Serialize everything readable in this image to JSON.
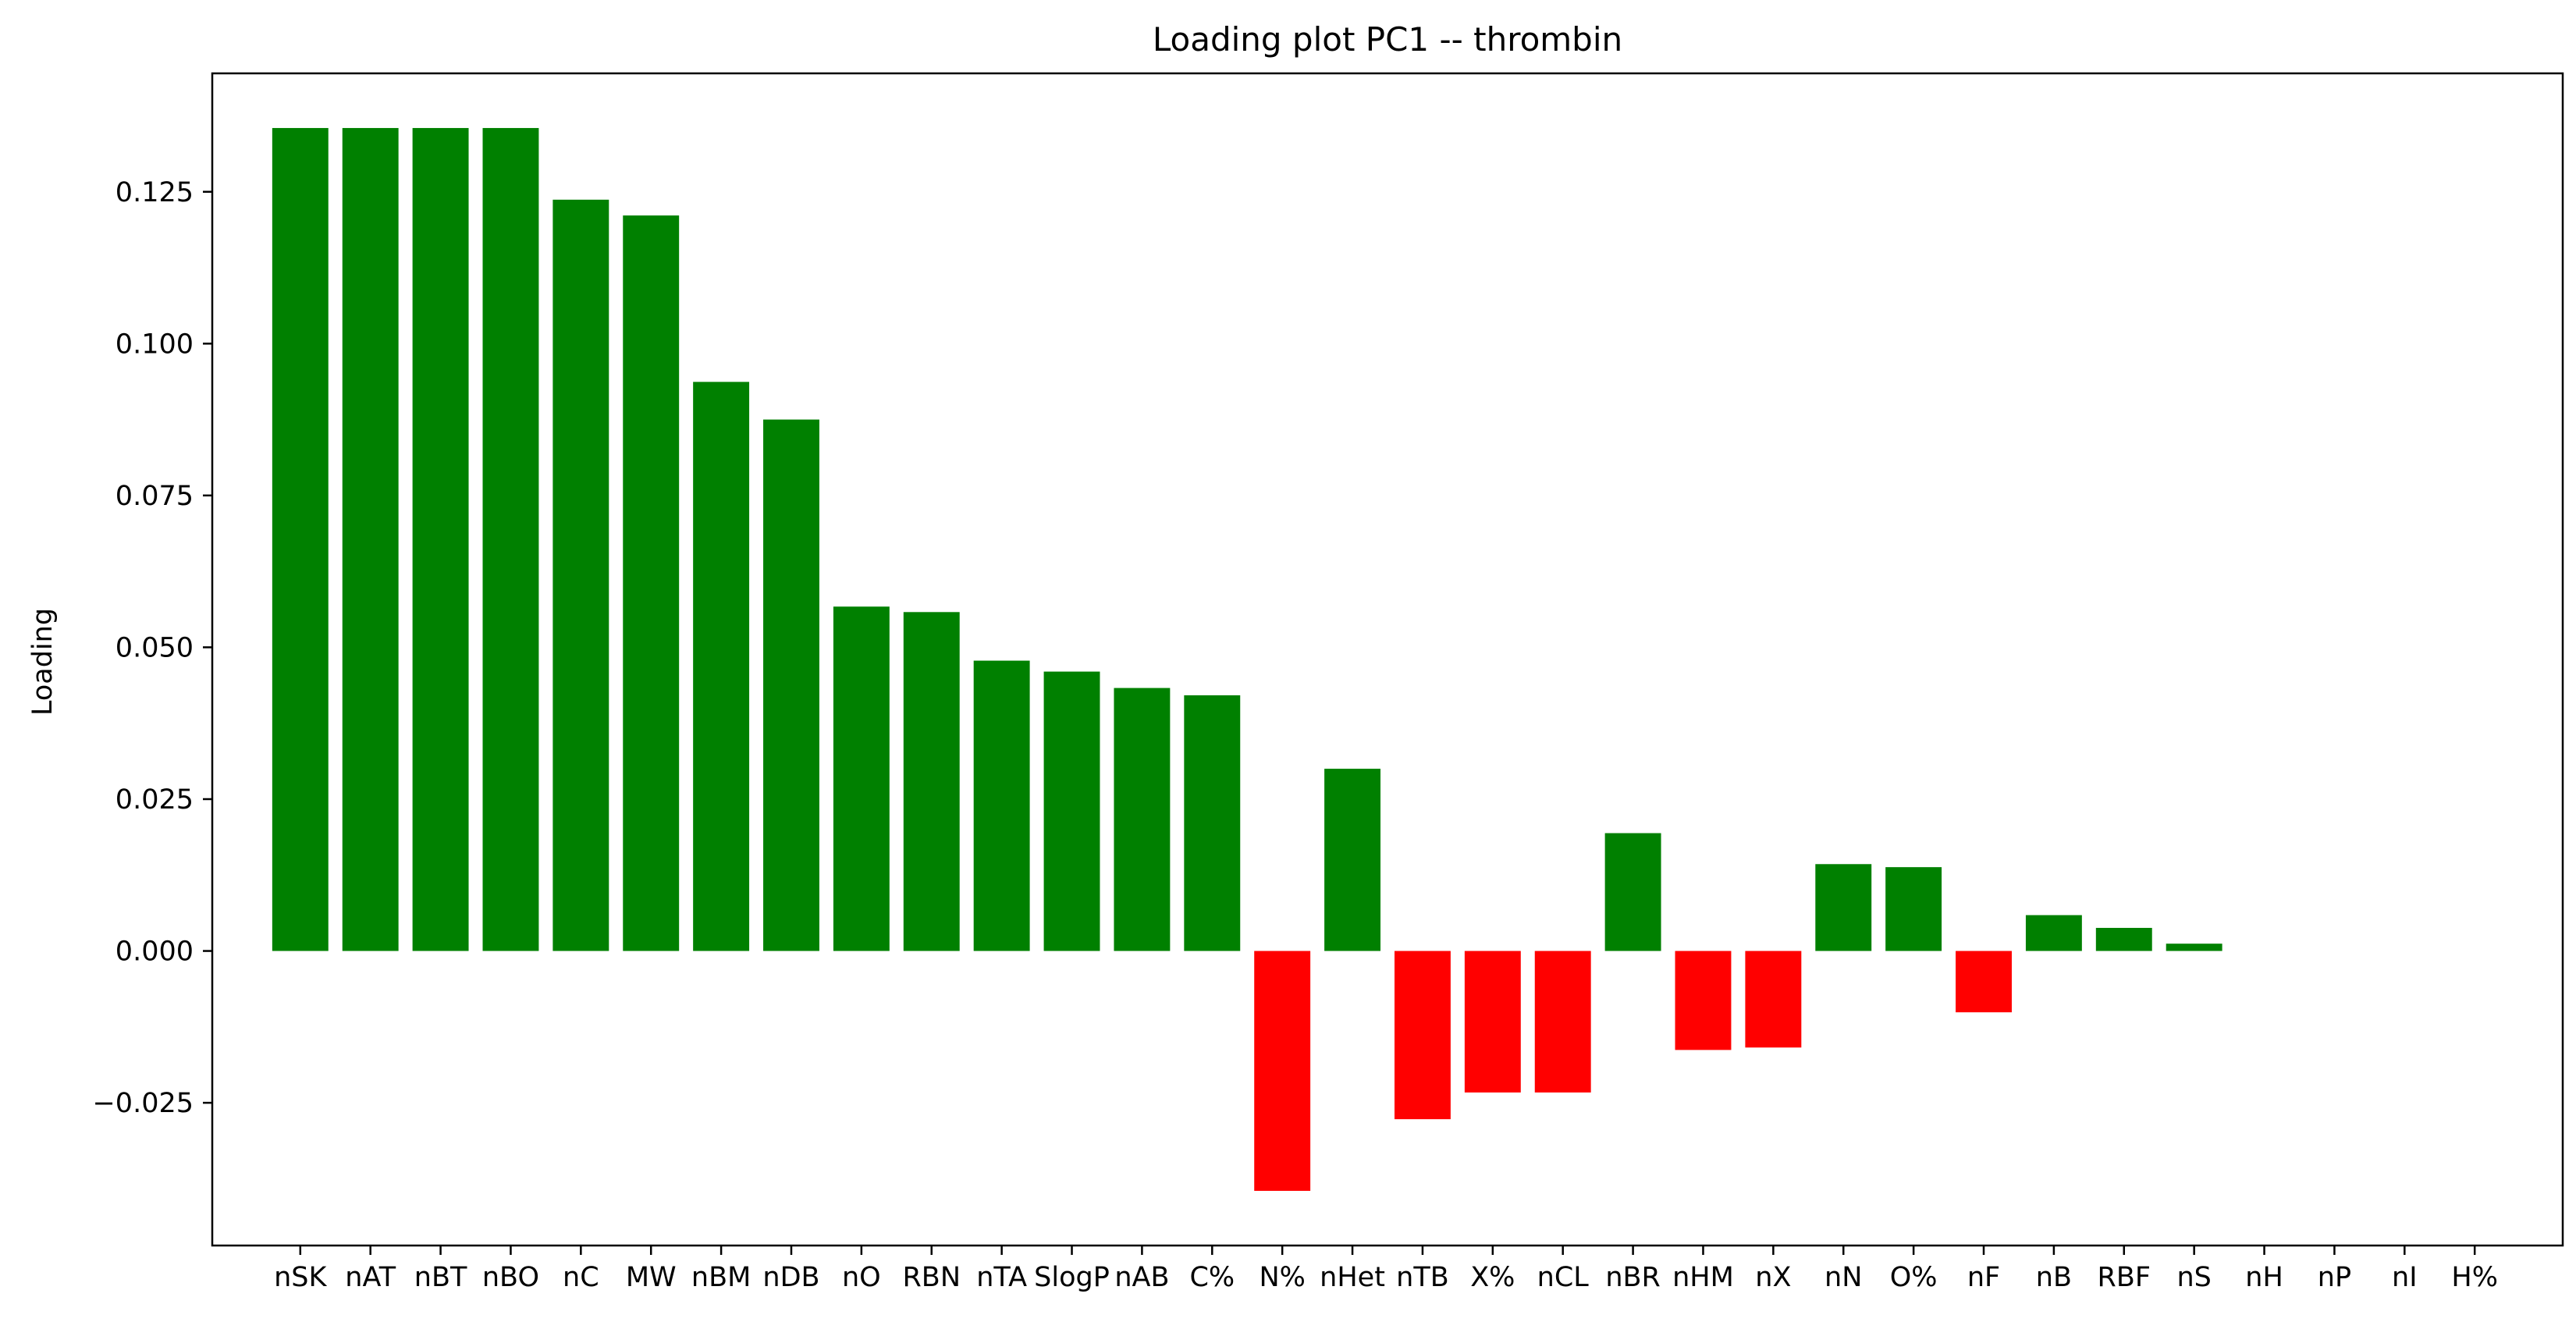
{
  "chart_data": {
    "type": "bar",
    "title": "Loading plot PC1 -- thrombin",
    "xlabel": "",
    "ylabel": "Loading",
    "ylim": [
      -0.0485,
      0.1445
    ],
    "yticks": [
      -0.025,
      0.0,
      0.025,
      0.05,
      0.075,
      0.1,
      0.125
    ],
    "ytick_labels": [
      "−0.025",
      "0.000",
      "0.025",
      "0.050",
      "0.075",
      "0.100",
      "0.125"
    ],
    "grid": false,
    "legend": "none",
    "positive_color": "#008000",
    "negative_color": "#ff0000",
    "categories": [
      "nSK",
      "nAT",
      "nBT",
      "nBO",
      "nC",
      "MW",
      "nBM",
      "nDB",
      "nO",
      "RBN",
      "nTA",
      "SlogP",
      "nAB",
      "C%",
      "N%",
      "nHet",
      "nTB",
      "X%",
      "nCL",
      "nBR",
      "nHM",
      "nX",
      "nN",
      "O%",
      "nF",
      "nB",
      "RBF",
      "nS",
      "nH",
      "nP",
      "nI",
      "H%"
    ],
    "values": [
      0.1355,
      0.1355,
      0.1355,
      0.1355,
      0.1237,
      0.1211,
      0.0937,
      0.0875,
      0.0567,
      0.0558,
      0.0478,
      0.046,
      0.0433,
      0.0421,
      -0.0395,
      0.03,
      -0.0277,
      -0.0233,
      -0.0233,
      0.0194,
      -0.0163,
      -0.0159,
      0.0143,
      0.0138,
      -0.0101,
      0.0059,
      0.0038,
      0.0012,
      0.0,
      0.0,
      0.0,
      0.0
    ]
  }
}
